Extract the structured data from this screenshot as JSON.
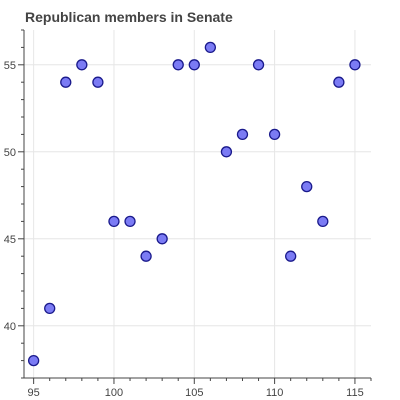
{
  "chart_data": {
    "type": "scatter",
    "title": "Republican members in Senate",
    "xlabel": "",
    "ylabel": "",
    "xlim": [
      94.4,
      116.0
    ],
    "ylim": [
      37.0,
      57.0
    ],
    "x_ticks": [
      95,
      100,
      105,
      110,
      115
    ],
    "y_ticks": [
      40,
      45,
      50,
      55
    ],
    "grid": true,
    "legend": "none",
    "series": [
      {
        "x": [
          95,
          96,
          97,
          98,
          99,
          100,
          101,
          102,
          103,
          104,
          105,
          106,
          107,
          108,
          109,
          110,
          111,
          112,
          113,
          114,
          115
        ],
        "y": [
          38,
          41,
          54,
          55,
          54,
          46,
          46,
          44,
          45,
          55,
          55,
          56,
          50,
          51,
          55,
          51,
          44,
          48,
          46,
          54,
          55
        ]
      }
    ],
    "colors": {
      "marker_fill": "#7b7bf4",
      "marker_stroke": "#1a1a8c",
      "grid": "#e6e6e6",
      "axis": "#444444",
      "title": "#444444"
    }
  }
}
